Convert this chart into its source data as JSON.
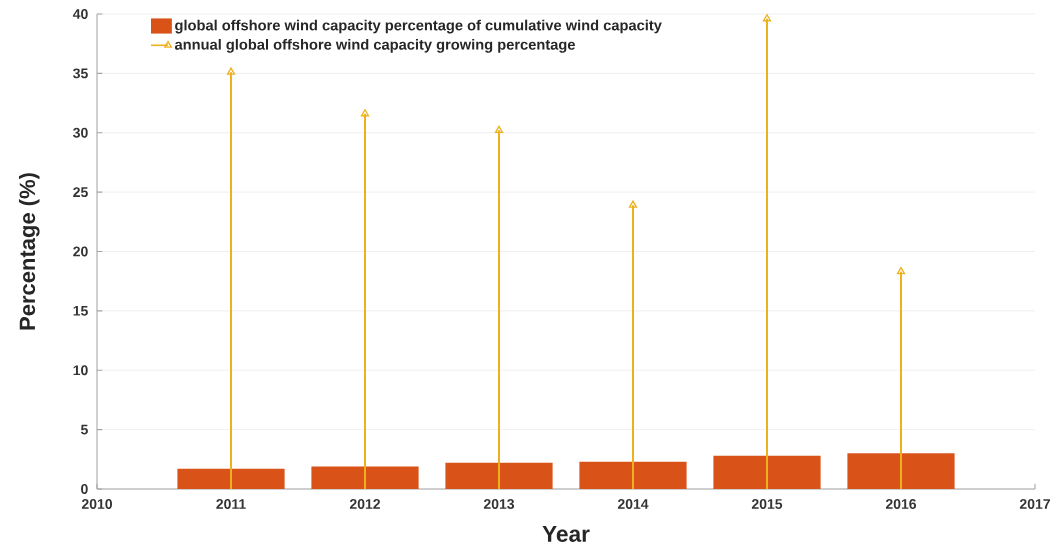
{
  "chart_data": {
    "type": "bar",
    "x": [
      2011,
      2012,
      2013,
      2014,
      2015,
      2016
    ],
    "xlim": [
      2010,
      2017
    ],
    "xticks": [
      2010,
      2011,
      2012,
      2013,
      2014,
      2015,
      2016,
      2017
    ],
    "ylim": [
      0,
      40
    ],
    "yticks": [
      0,
      5,
      10,
      15,
      20,
      25,
      30,
      35,
      40
    ],
    "xlabel": "Year",
    "ylabel": "Percentage (%)",
    "grid": "y",
    "legend": "top left",
    "series": [
      {
        "name": "global offshore wind capacity percentage of cumulative wind capacity",
        "color": "#d95319",
        "values": [
          1.7,
          1.9,
          2.2,
          2.3,
          2.8,
          3.0
        ]
      },
      {
        "name": "annual global offshore wind capacity growing percentage",
        "type": "lollipop",
        "color": "#edb120",
        "marker": "triangle",
        "values": [
          35.1,
          31.6,
          30.2,
          23.9,
          39.6,
          18.3
        ]
      }
    ]
  }
}
